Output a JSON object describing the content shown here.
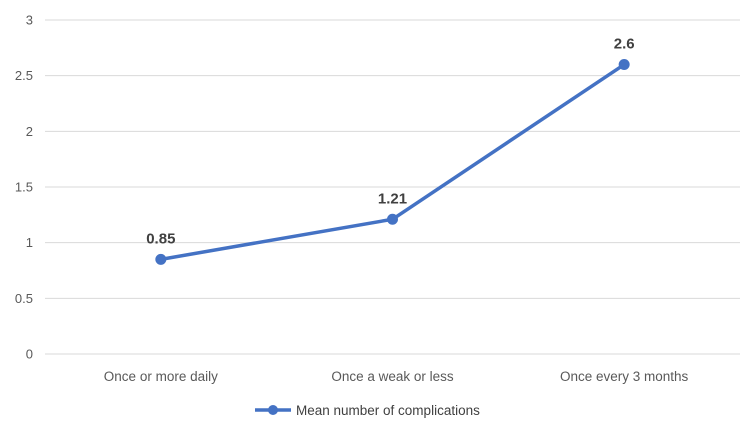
{
  "chart_data": {
    "type": "line",
    "title": "",
    "xlabel": "",
    "ylabel": "",
    "categories": [
      "Once or more daily",
      "Once a weak or less",
      "Once every 3 months"
    ],
    "series": [
      {
        "name": "Mean number of complications",
        "values": [
          0.85,
          1.21,
          2.6
        ],
        "data_labels": [
          "0.85",
          "1.21",
          "2.6"
        ],
        "color": "#4472c4"
      }
    ],
    "ylim": [
      0,
      3
    ],
    "yticks": [
      0,
      0.5,
      1,
      1.5,
      2,
      2.5,
      3
    ],
    "ytick_labels": [
      "0",
      "0.5",
      "1",
      "1.5",
      "2",
      "2.5",
      "3"
    ],
    "grid": true,
    "legend_position": "bottom",
    "marker": "circle"
  }
}
